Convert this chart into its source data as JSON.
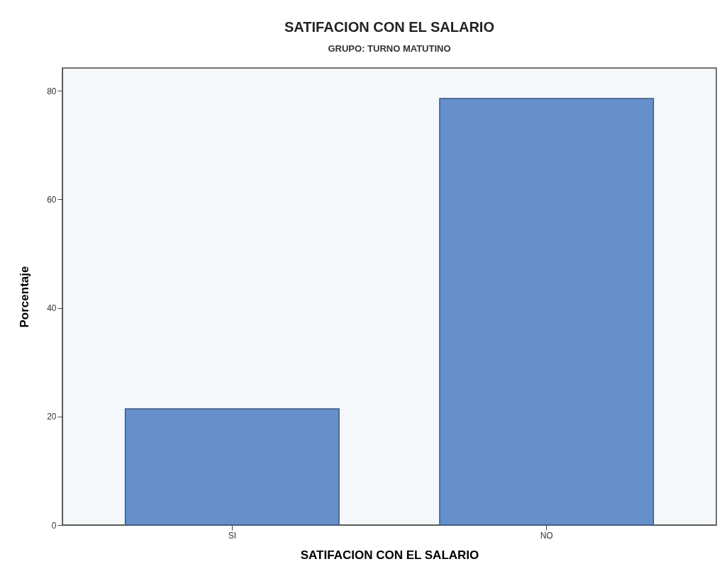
{
  "chart_data": {
    "type": "bar",
    "title": "SATIFACION CON EL SALARIO",
    "subtitle": "GRUPO: TURNO MATUTINO",
    "xlabel": "SATIFACION CON EL SALARIO",
    "ylabel": "Porcentaje",
    "categories": [
      "SI",
      "NO"
    ],
    "values": [
      21.4,
      78.6
    ],
    "color": "#6690cb",
    "ylim": [
      0,
      84.2
    ],
    "yticks": [
      0,
      20,
      40,
      60,
      80
    ],
    "grid": false
  }
}
